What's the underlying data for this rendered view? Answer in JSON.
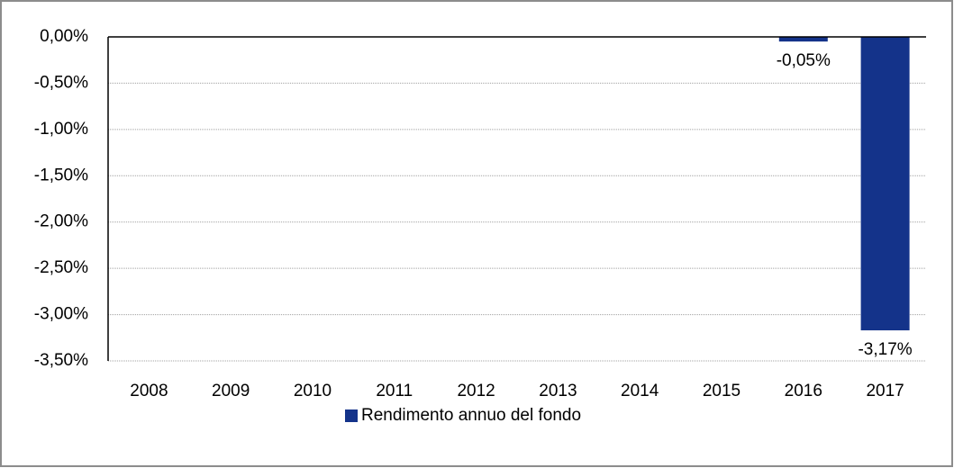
{
  "chart_data": {
    "type": "bar",
    "categories": [
      "2008",
      "2009",
      "2010",
      "2011",
      "2012",
      "2013",
      "2014",
      "2015",
      "2016",
      "2017"
    ],
    "series": [
      {
        "name": "Rendimento annuo del fondo",
        "color": "#14338a",
        "values": [
          null,
          null,
          null,
          null,
          null,
          null,
          null,
          null,
          -0.05,
          -3.17
        ],
        "value_labels": [
          null,
          null,
          null,
          null,
          null,
          null,
          null,
          null,
          "-0,05%",
          "-3,17%"
        ]
      }
    ],
    "ylim": [
      -3.5,
      0
    ],
    "yticks": [
      {
        "value": 0,
        "label": "0,00%"
      },
      {
        "value": -0.5,
        "label": "-0,50%"
      },
      {
        "value": -1,
        "label": "-1,00%"
      },
      {
        "value": -1.5,
        "label": "-1,50%"
      },
      {
        "value": -2,
        "label": "-2,00%"
      },
      {
        "value": -2.5,
        "label": "-2,50%"
      },
      {
        "value": -3,
        "label": "-3,00%"
      },
      {
        "value": -3.5,
        "label": "-3,50%"
      }
    ],
    "grid": true,
    "legend": "bottom"
  }
}
